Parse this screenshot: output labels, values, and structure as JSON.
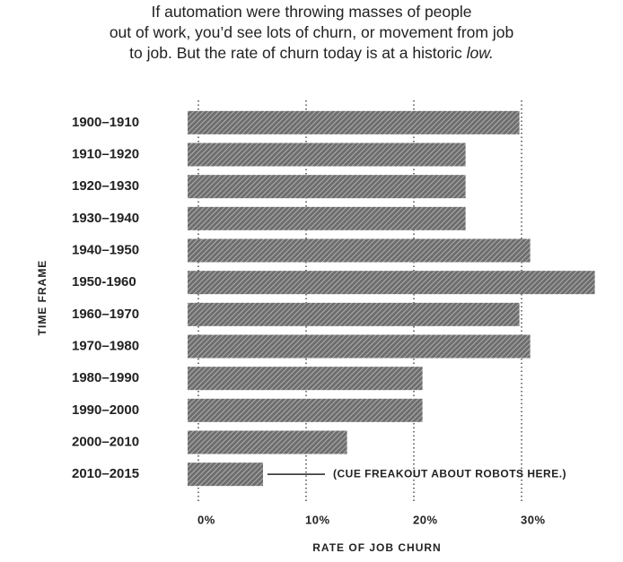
{
  "chart_data": {
    "type": "bar",
    "orientation": "horizontal",
    "title": [
      "If automation were throwing masses of people",
      "out of work, you’d see lots of churn, or movement from job",
      "to job. But the rate of churn today is at a historic "
    ],
    "title_emphasis": "low.",
    "categories": [
      "1900–1910",
      "1910–1920",
      "1920–1930",
      "1930–1940",
      "1940–1950",
      "1950-1960",
      "1960–1970",
      "1970–1980",
      "1980–1990",
      "1990–2000",
      "2000–2010",
      "2010–2015"
    ],
    "values": [
      29.8,
      24.8,
      24.8,
      24.8,
      30.8,
      36.8,
      29.8,
      30.8,
      20.8,
      20.8,
      13.8,
      6.0
    ],
    "color": "#6e6e6e",
    "xlim": [
      -1,
      37.75
    ],
    "xticks": [
      {
        "value": 0,
        "label": "0%"
      },
      {
        "value": 10,
        "label": "10%"
      },
      {
        "value": 20,
        "label": "20%"
      },
      {
        "value": 30,
        "label": "30%"
      }
    ],
    "grid": true,
    "x_label": "RATE OF JOB CHURN",
    "y_label": "TIME FRAME",
    "annotation": {
      "text": "(CUE FREAKOUT ABOUT ROBOTS HERE.)",
      "category_index": 11
    }
  }
}
